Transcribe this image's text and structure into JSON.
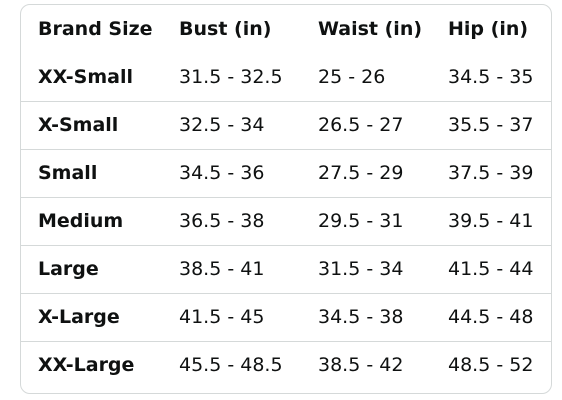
{
  "table": {
    "headers": [
      "Brand Size",
      "Bust (in)",
      "Waist (in)",
      "Hip (in)"
    ],
    "rows": [
      [
        "XX-Small",
        "31.5 - 32.5",
        "25 - 26",
        "34.5 - 35"
      ],
      [
        "X-Small",
        "32.5 - 34",
        "26.5 - 27",
        "35.5 - 37"
      ],
      [
        "Small",
        "34.5 - 36",
        "27.5 - 29",
        "37.5 - 39"
      ],
      [
        "Medium",
        "36.5 - 38",
        "29.5 - 31",
        "39.5 - 41"
      ],
      [
        "Large",
        "38.5 - 41",
        "31.5 - 34",
        "41.5 - 44"
      ],
      [
        "X-Large",
        "41.5 - 45",
        "34.5 - 38",
        "44.5 - 48"
      ],
      [
        "XX-Large",
        "45.5 - 48.5",
        "38.5 - 42",
        "48.5 - 52"
      ]
    ]
  },
  "colors": {
    "text": "#0f1111",
    "border": "#d5d9d9",
    "background": "#ffffff"
  }
}
